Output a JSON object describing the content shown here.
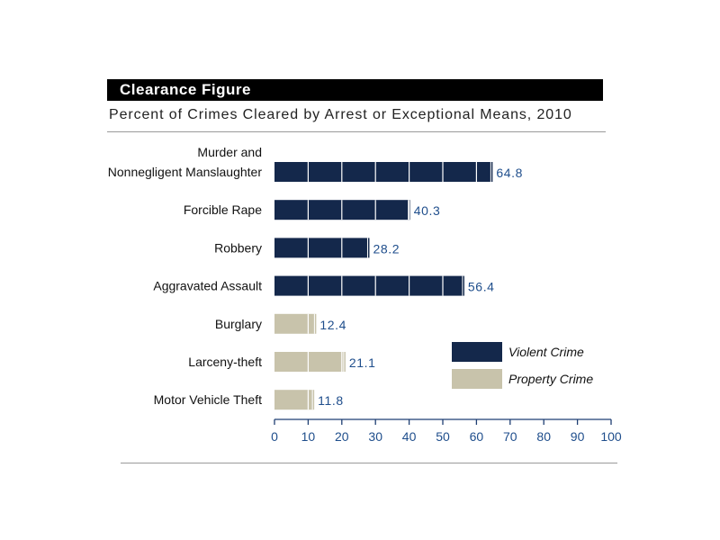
{
  "header": {
    "title": "Clearance Figure",
    "subtitle": "Percent of Crimes Cleared by Arrest or Exceptional Means, 2010"
  },
  "colors": {
    "violent": "#14284b",
    "property": "#c8c3ab",
    "value_label": "#1f4e8c",
    "axis": "#1f3f73",
    "category_label": "#111111"
  },
  "chart_data": {
    "type": "bar",
    "orientation": "horizontal",
    "categories": [
      [
        "Murder and",
        "Nonnegligent Manslaughter"
      ],
      [
        "Forcible Rape"
      ],
      [
        "Robbery"
      ],
      [
        "Aggravated Assault"
      ],
      [
        "Burglary"
      ],
      [
        "Larceny-theft"
      ],
      [
        "Motor Vehicle Theft"
      ]
    ],
    "values": [
      64.8,
      40.3,
      28.2,
      56.4,
      12.4,
      21.1,
      11.8
    ],
    "value_labels": [
      "64.8",
      "40.3",
      "28.2",
      "56.4",
      "12.4",
      "21.1",
      "11.8"
    ],
    "groups": [
      "violent",
      "violent",
      "violent",
      "violent",
      "property",
      "property",
      "property"
    ],
    "legend": [
      {
        "key": "violent",
        "label": "Violent Crime"
      },
      {
        "key": "property",
        "label": "Property Crime"
      }
    ],
    "legend_position": "lower-right",
    "xlim": [
      0,
      100
    ],
    "xticks": [
      0,
      10,
      20,
      30,
      40,
      50,
      60,
      70,
      80,
      90,
      100
    ],
    "xlabel": "",
    "ylabel": "",
    "grid": false
  }
}
